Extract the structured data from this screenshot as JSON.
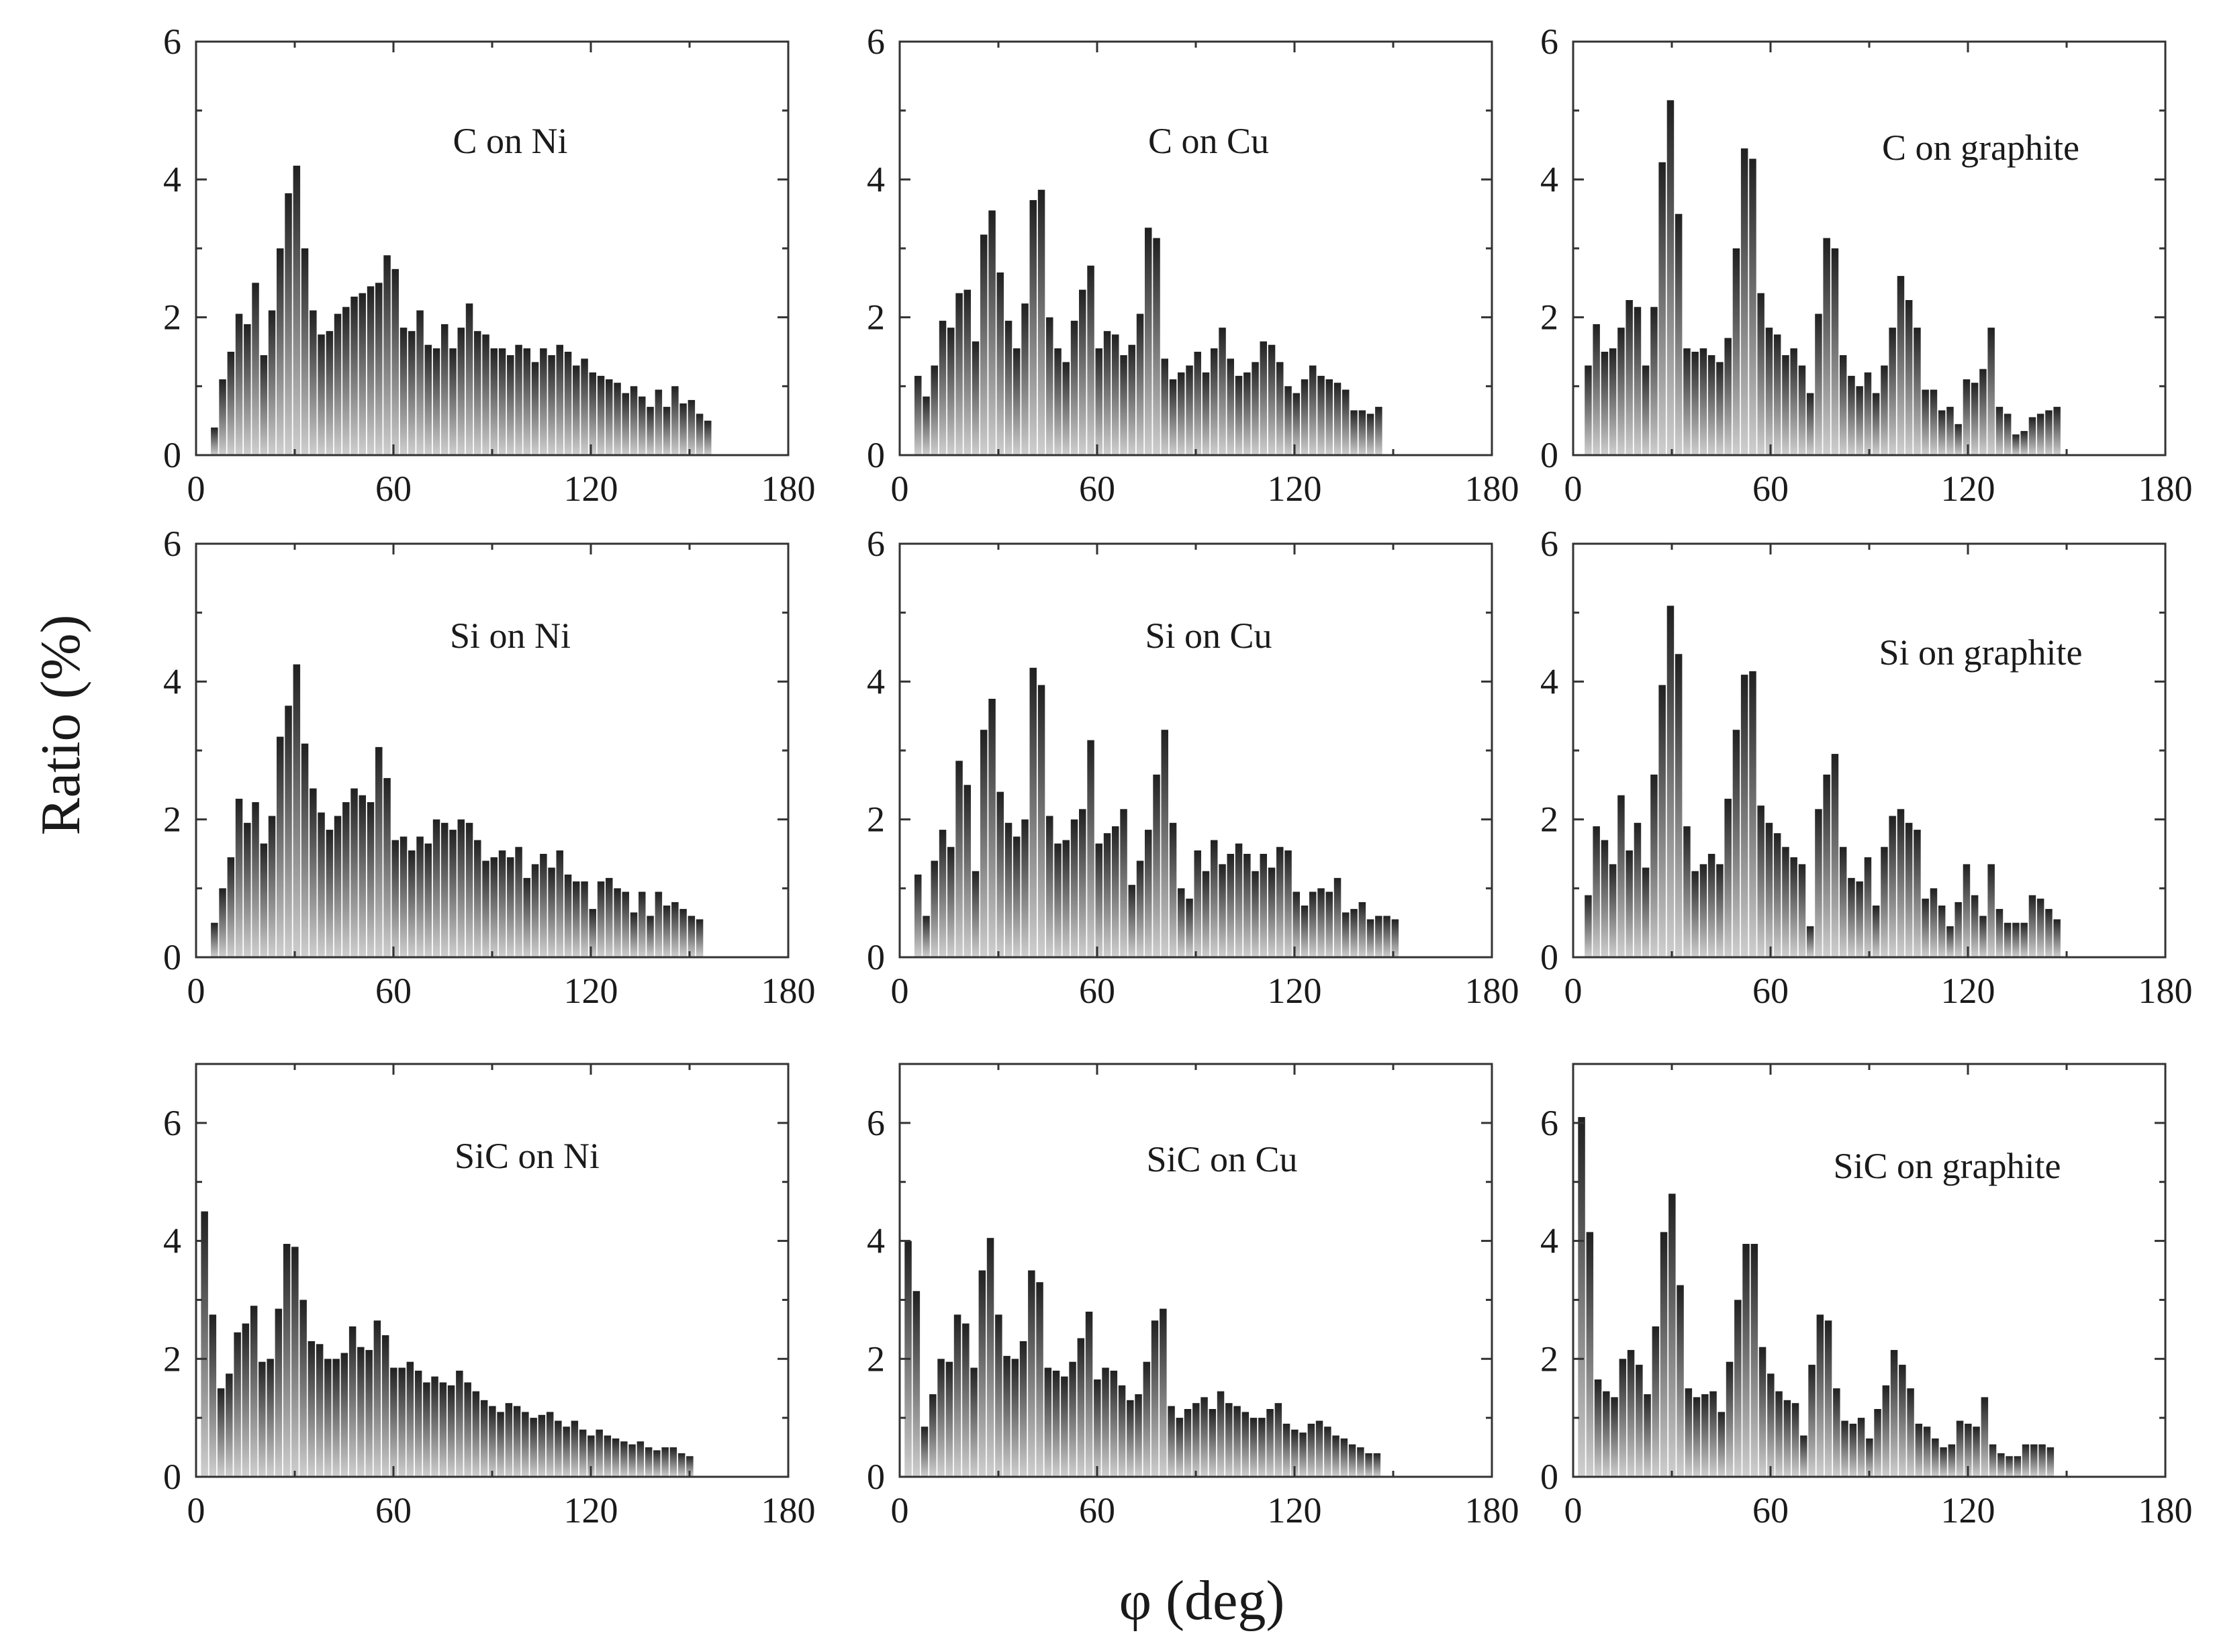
{
  "figure": {
    "xlabel": "φ (deg)",
    "ylabel": "Ratio (%)"
  },
  "colors": {
    "bar_dark": "#222222",
    "bar_light": "#c8c8c8",
    "axis": "#333333",
    "text": "#1a1a1a"
  },
  "chart_data": [
    {
      "type": "bar",
      "title": "C on Ni",
      "xlabel": "φ (deg)",
      "ylabel": "Ratio (%)",
      "xlim": [
        0,
        180
      ],
      "ylim": [
        0,
        6
      ],
      "xticks": [
        0,
        60,
        120,
        180
      ],
      "yticks": [
        0,
        2,
        4,
        6
      ],
      "bin_width": 2.5,
      "x_start": 4.5,
      "values": [
        0.4,
        1.1,
        1.5,
        2.05,
        1.9,
        2.5,
        1.45,
        2.1,
        3.0,
        3.8,
        4.2,
        3.0,
        2.1,
        1.75,
        1.8,
        2.05,
        2.15,
        2.3,
        2.35,
        2.45,
        2.5,
        2.9,
        2.7,
        1.85,
        1.8,
        2.1,
        1.6,
        1.55,
        1.9,
        1.55,
        1.85,
        2.2,
        1.8,
        1.75,
        1.55,
        1.55,
        1.45,
        1.6,
        1.55,
        1.35,
        1.55,
        1.45,
        1.6,
        1.5,
        1.3,
        1.4,
        1.2,
        1.15,
        1.1,
        1.05,
        0.9,
        1.0,
        0.85,
        0.7,
        0.95,
        0.7,
        1.0,
        0.75,
        0.8,
        0.6,
        0.5
      ]
    },
    {
      "type": "bar",
      "title": "C on Cu",
      "xlabel": "φ (deg)",
      "ylabel": "Ratio (%)",
      "xlim": [
        0,
        180
      ],
      "ylim": [
        0,
        6
      ],
      "xticks": [
        0,
        60,
        120,
        180
      ],
      "yticks": [
        0,
        2,
        4,
        6
      ],
      "bin_width": 2.5,
      "x_start": 4.5,
      "values": [
        1.15,
        0.85,
        1.3,
        1.95,
        1.85,
        2.35,
        2.4,
        1.65,
        3.2,
        3.55,
        2.65,
        1.95,
        1.55,
        2.2,
        3.7,
        3.85,
        2.0,
        1.55,
        1.35,
        1.95,
        2.4,
        2.75,
        1.55,
        1.8,
        1.75,
        1.45,
        1.6,
        2.05,
        3.3,
        3.15,
        1.4,
        1.1,
        1.2,
        1.3,
        1.5,
        1.2,
        1.55,
        1.85,
        1.4,
        1.15,
        1.2,
        1.35,
        1.65,
        1.6,
        1.35,
        1.0,
        0.9,
        1.1,
        1.3,
        1.15,
        1.1,
        1.05,
        0.95,
        0.65,
        0.65,
        0.6,
        0.7
      ]
    },
    {
      "type": "bar",
      "title": "C on graphite",
      "xlabel": "φ (deg)",
      "ylabel": "Ratio (%)",
      "xlim": [
        0,
        180
      ],
      "ylim": [
        0,
        6
      ],
      "xticks": [
        0,
        60,
        120,
        180
      ],
      "yticks": [
        0,
        2,
        4,
        6
      ],
      "bin_width": 2.5,
      "x_start": 3.5,
      "values": [
        1.3,
        1.9,
        1.5,
        1.55,
        1.85,
        2.25,
        2.15,
        1.3,
        2.15,
        4.25,
        5.15,
        3.5,
        1.55,
        1.5,
        1.55,
        1.45,
        1.35,
        1.7,
        3.0,
        4.45,
        4.3,
        2.35,
        1.85,
        1.75,
        1.45,
        1.55,
        1.3,
        0.9,
        2.05,
        3.15,
        3.0,
        1.45,
        1.15,
        1.0,
        1.2,
        0.9,
        1.3,
        1.85,
        2.6,
        2.25,
        1.85,
        0.95,
        0.95,
        0.65,
        0.7,
        0.45,
        1.1,
        1.05,
        1.25,
        1.85,
        0.7,
        0.6,
        0.3,
        0.35,
        0.55,
        0.6,
        0.65,
        0.7
      ]
    },
    {
      "type": "bar",
      "title": "Si on Ni",
      "xlabel": "φ (deg)",
      "ylabel": "Ratio (%)",
      "xlim": [
        0,
        180
      ],
      "ylim": [
        0,
        6
      ],
      "xticks": [
        0,
        60,
        120,
        180
      ],
      "yticks": [
        0,
        2,
        4,
        6
      ],
      "bin_width": 2.5,
      "x_start": 4.5,
      "values": [
        0.5,
        1.0,
        1.45,
        2.3,
        1.95,
        2.25,
        1.65,
        2.05,
        3.2,
        3.65,
        4.25,
        3.1,
        2.45,
        2.1,
        1.85,
        2.05,
        2.25,
        2.45,
        2.35,
        2.25,
        3.05,
        2.6,
        1.7,
        1.75,
        1.55,
        1.75,
        1.65,
        2.0,
        1.95,
        1.85,
        2.0,
        1.95,
        1.7,
        1.4,
        1.45,
        1.55,
        1.45,
        1.6,
        1.15,
        1.35,
        1.5,
        1.3,
        1.55,
        1.2,
        1.1,
        1.1,
        0.7,
        1.1,
        1.15,
        1.0,
        0.95,
        0.65,
        0.95,
        0.6,
        0.95,
        0.75,
        0.8,
        0.7,
        0.6,
        0.55
      ]
    },
    {
      "type": "bar",
      "title": "Si on Cu",
      "xlabel": "φ (deg)",
      "ylabel": "Ratio (%)",
      "xlim": [
        0,
        180
      ],
      "ylim": [
        0,
        6
      ],
      "xticks": [
        0,
        60,
        120,
        180
      ],
      "yticks": [
        0,
        2,
        4,
        6
      ],
      "bin_width": 2.5,
      "x_start": 4.5,
      "values": [
        1.2,
        0.6,
        1.4,
        1.85,
        1.6,
        2.85,
        2.5,
        1.25,
        3.3,
        3.75,
        2.4,
        1.95,
        1.75,
        2.0,
        4.2,
        3.95,
        2.05,
        1.65,
        1.7,
        2.0,
        2.15,
        3.15,
        1.65,
        1.8,
        1.9,
        2.15,
        1.05,
        1.4,
        1.85,
        2.65,
        3.3,
        1.95,
        1.0,
        0.85,
        1.55,
        1.25,
        1.7,
        1.35,
        1.5,
        1.65,
        1.5,
        1.25,
        1.5,
        1.3,
        1.6,
        1.55,
        0.95,
        0.75,
        0.95,
        1.0,
        0.95,
        1.15,
        0.65,
        0.7,
        0.8,
        0.55,
        0.6,
        0.6,
        0.55
      ]
    },
    {
      "type": "bar",
      "title": "Si on graphite",
      "xlabel": "φ (deg)",
      "ylabel": "Ratio (%)",
      "xlim": [
        0,
        180
      ],
      "ylim": [
        0,
        6
      ],
      "xticks": [
        0,
        60,
        120,
        180
      ],
      "yticks": [
        0,
        2,
        4,
        6
      ],
      "bin_width": 2.5,
      "x_start": 3.5,
      "values": [
        0.9,
        1.9,
        1.7,
        1.35,
        2.35,
        1.55,
        1.95,
        1.3,
        2.65,
        3.95,
        5.1,
        4.4,
        1.9,
        1.25,
        1.35,
        1.5,
        1.35,
        2.3,
        3.3,
        4.1,
        4.15,
        2.2,
        1.95,
        1.8,
        1.6,
        1.45,
        1.35,
        0.45,
        2.15,
        2.65,
        2.95,
        1.6,
        1.15,
        1.1,
        1.45,
        0.75,
        1.6,
        2.05,
        2.15,
        1.95,
        1.85,
        0.85,
        1.0,
        0.75,
        0.45,
        0.8,
        1.35,
        0.9,
        0.6,
        1.35,
        0.7,
        0.5,
        0.5,
        0.5,
        0.9,
        0.85,
        0.7,
        0.55
      ]
    },
    {
      "type": "bar",
      "title": "SiC on Ni",
      "xlabel": "φ (deg)",
      "ylabel": "Ratio (%)",
      "xlim": [
        0,
        180
      ],
      "ylim": [
        0,
        7
      ],
      "xticks": [
        0,
        60,
        120,
        180
      ],
      "yticks": [
        0,
        2,
        4,
        6
      ],
      "bin_width": 2.5,
      "x_start": 1.5,
      "values": [
        4.5,
        2.75,
        1.5,
        1.75,
        2.45,
        2.6,
        2.9,
        1.95,
        2.0,
        2.85,
        3.95,
        3.9,
        3.0,
        2.3,
        2.25,
        2.0,
        2.0,
        2.1,
        2.55,
        2.2,
        2.15,
        2.65,
        2.4,
        1.85,
        1.85,
        1.95,
        1.8,
        1.6,
        1.7,
        1.6,
        1.55,
        1.8,
        1.6,
        1.45,
        1.3,
        1.2,
        1.1,
        1.25,
        1.2,
        1.1,
        1.0,
        1.05,
        1.1,
        0.95,
        0.85,
        0.95,
        0.8,
        0.7,
        0.8,
        0.7,
        0.65,
        0.6,
        0.55,
        0.6,
        0.5,
        0.45,
        0.5,
        0.5,
        0.4,
        0.35
      ]
    },
    {
      "type": "bar",
      "title": "SiC on Cu",
      "xlabel": "φ (deg)",
      "ylabel": "Ratio (%)",
      "xlim": [
        0,
        180
      ],
      "ylim": [
        0,
        7
      ],
      "xticks": [
        0,
        60,
        120,
        180
      ],
      "yticks": [
        0,
        2,
        4,
        6
      ],
      "bin_width": 2.5,
      "x_start": 1.5,
      "values": [
        4.0,
        3.15,
        0.85,
        1.4,
        2.0,
        1.95,
        2.75,
        2.6,
        1.85,
        3.5,
        4.05,
        2.75,
        2.05,
        2.0,
        2.3,
        3.5,
        3.3,
        1.85,
        1.8,
        1.7,
        1.95,
        2.35,
        2.8,
        1.65,
        1.85,
        1.8,
        1.55,
        1.3,
        1.4,
        1.95,
        2.65,
        2.85,
        1.2,
        1.0,
        1.15,
        1.25,
        1.35,
        1.15,
        1.45,
        1.25,
        1.2,
        1.1,
        1.0,
        1.0,
        1.15,
        1.25,
        0.9,
        0.8,
        0.75,
        0.9,
        0.95,
        0.85,
        0.7,
        0.65,
        0.55,
        0.5,
        0.4,
        0.4
      ]
    },
    {
      "type": "bar",
      "title": "SiC on graphite",
      "xlabel": "φ (deg)",
      "ylabel": "Ratio (%)",
      "xlim": [
        0,
        180
      ],
      "ylim": [
        0,
        7
      ],
      "xticks": [
        0,
        60,
        120,
        180
      ],
      "yticks": [
        0,
        2,
        4,
        6
      ],
      "bin_width": 2.5,
      "x_start": 1.5,
      "values": [
        6.1,
        4.15,
        1.65,
        1.45,
        1.35,
        2.0,
        2.15,
        1.9,
        1.4,
        2.55,
        4.15,
        4.8,
        3.25,
        1.5,
        1.35,
        1.4,
        1.45,
        1.1,
        1.95,
        3.0,
        3.95,
        3.95,
        2.2,
        1.75,
        1.45,
        1.3,
        1.25,
        0.7,
        1.9,
        2.75,
        2.65,
        1.5,
        0.95,
        0.9,
        1.0,
        0.65,
        1.15,
        1.55,
        2.15,
        1.9,
        1.5,
        0.9,
        0.85,
        0.65,
        0.5,
        0.55,
        0.95,
        0.9,
        0.85,
        1.35,
        0.55,
        0.4,
        0.35,
        0.35,
        0.55,
        0.55,
        0.55,
        0.5
      ]
    }
  ]
}
